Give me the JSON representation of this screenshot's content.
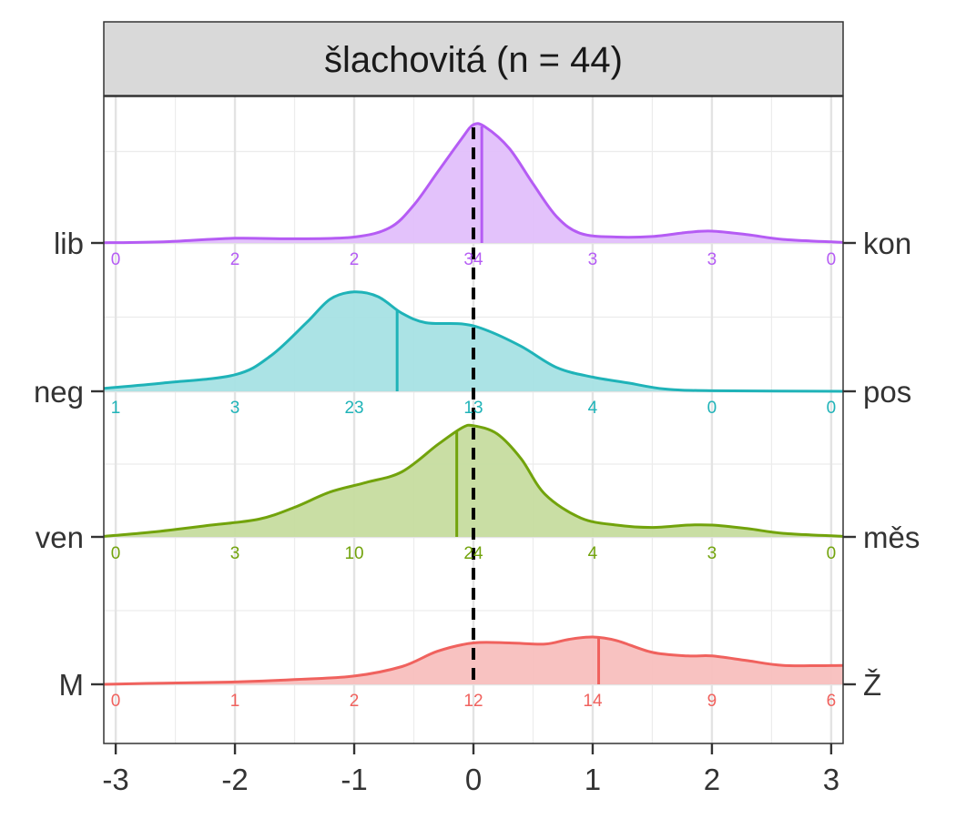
{
  "chart_data": {
    "type": "ridgeline-density",
    "title": "šlachovitá (n = 44)",
    "xlim": [
      -3.1,
      3.1
    ],
    "x_ticks": [
      -3,
      -2,
      -1,
      0,
      1,
      2,
      3
    ],
    "x_tick_labels": [
      "-3",
      "-2",
      "-1",
      "0",
      "1",
      "2",
      "3"
    ],
    "reference_line_x": 0,
    "count_positions": [
      -3,
      -2,
      -1,
      0,
      1,
      2,
      3
    ],
    "grid": true,
    "series": [
      {
        "left_label": "lib",
        "right_label": "kon",
        "color": "#B55CF4",
        "fill": "#E2BFFB",
        "mean": 0.07,
        "counts": [
          "0",
          "2",
          "2",
          "34",
          "3",
          "3",
          "0"
        ],
        "density": [
          [
            -3.1,
            0.002
          ],
          [
            -2.6,
            0.01
          ],
          [
            -2.0,
            0.04
          ],
          [
            -1.5,
            0.035
          ],
          [
            -1.0,
            0.05
          ],
          [
            -0.7,
            0.13
          ],
          [
            -0.5,
            0.32
          ],
          [
            -0.3,
            0.6
          ],
          [
            -0.1,
            0.88
          ],
          [
            0.0,
            1.0
          ],
          [
            0.1,
            0.98
          ],
          [
            0.3,
            0.8
          ],
          [
            0.5,
            0.5
          ],
          [
            0.7,
            0.22
          ],
          [
            0.9,
            0.08
          ],
          [
            1.2,
            0.05
          ],
          [
            1.5,
            0.055
          ],
          [
            1.8,
            0.09
          ],
          [
            2.0,
            0.1
          ],
          [
            2.3,
            0.07
          ],
          [
            2.6,
            0.03
          ],
          [
            3.1,
            0.005
          ]
        ]
      },
      {
        "left_label": "neg",
        "right_label": "pos",
        "color": "#1FB3B8",
        "fill": "#A6E2E4",
        "mean": -0.64,
        "counts": [
          "1",
          "3",
          "23",
          "13",
          "4",
          "0",
          "0"
        ],
        "density": [
          [
            -3.1,
            0.025
          ],
          [
            -2.6,
            0.07
          ],
          [
            -2.0,
            0.14
          ],
          [
            -1.7,
            0.3
          ],
          [
            -1.4,
            0.58
          ],
          [
            -1.2,
            0.78
          ],
          [
            -1.0,
            0.84
          ],
          [
            -0.8,
            0.8
          ],
          [
            -0.6,
            0.66
          ],
          [
            -0.4,
            0.58
          ],
          [
            -0.1,
            0.57
          ],
          [
            0.1,
            0.52
          ],
          [
            0.4,
            0.38
          ],
          [
            0.7,
            0.2
          ],
          [
            1.0,
            0.12
          ],
          [
            1.3,
            0.07
          ],
          [
            1.6,
            0.02
          ],
          [
            2.0,
            0.005
          ],
          [
            3.1,
            0.0
          ]
        ]
      },
      {
        "left_label": "ven",
        "right_label": "měs",
        "color": "#72A30C",
        "fill": "#C6DC9F",
        "mean": -0.14,
        "counts": [
          "0",
          "3",
          "10",
          "24",
          "4",
          "3",
          "0"
        ],
        "density": [
          [
            -3.1,
            0.005
          ],
          [
            -2.7,
            0.04
          ],
          [
            -2.2,
            0.1
          ],
          [
            -1.8,
            0.15
          ],
          [
            -1.5,
            0.25
          ],
          [
            -1.2,
            0.38
          ],
          [
            -0.9,
            0.46
          ],
          [
            -0.6,
            0.55
          ],
          [
            -0.3,
            0.78
          ],
          [
            -0.1,
            0.92
          ],
          [
            0.0,
            0.94
          ],
          [
            0.2,
            0.87
          ],
          [
            0.4,
            0.66
          ],
          [
            0.6,
            0.36
          ],
          [
            0.9,
            0.16
          ],
          [
            1.2,
            0.1
          ],
          [
            1.5,
            0.08
          ],
          [
            1.8,
            0.1
          ],
          [
            2.0,
            0.1
          ],
          [
            2.3,
            0.07
          ],
          [
            2.6,
            0.03
          ],
          [
            3.1,
            0.005
          ]
        ]
      },
      {
        "left_label": "M",
        "right_label": "Ž",
        "color": "#F0625E",
        "fill": "#F8BFBE",
        "mean": 1.05,
        "counts": [
          "0",
          "1",
          "2",
          "12",
          "14",
          "9",
          "6"
        ],
        "density": [
          [
            -3.1,
            0.0
          ],
          [
            -2.6,
            0.01
          ],
          [
            -2.0,
            0.02
          ],
          [
            -1.5,
            0.04
          ],
          [
            -1.0,
            0.07
          ],
          [
            -0.6,
            0.15
          ],
          [
            -0.3,
            0.28
          ],
          [
            0.0,
            0.35
          ],
          [
            0.3,
            0.35
          ],
          [
            0.6,
            0.34
          ],
          [
            0.8,
            0.38
          ],
          [
            1.0,
            0.4
          ],
          [
            1.2,
            0.37
          ],
          [
            1.5,
            0.27
          ],
          [
            1.8,
            0.24
          ],
          [
            2.0,
            0.24
          ],
          [
            2.3,
            0.2
          ],
          [
            2.6,
            0.16
          ],
          [
            3.1,
            0.16
          ]
        ]
      }
    ]
  }
}
